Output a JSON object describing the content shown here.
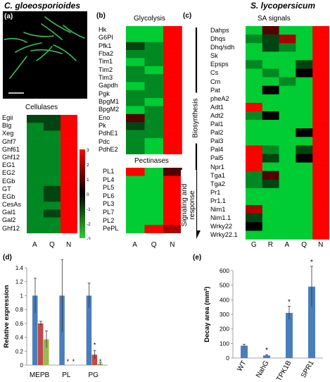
{
  "title_left": "C. gloeosporioides",
  "title_right": "S. lycopersicum",
  "panels": {
    "a": "(a)",
    "b": "(b)",
    "c": "(c)",
    "d": "(d)",
    "e": "(e)"
  },
  "heatmap_a": {
    "header": "Cellulases",
    "rows": [
      "Egii",
      "Blg",
      "Xeg",
      "Ghf7",
      "Ghf61",
      "Ghf12",
      "EG1",
      "EG2",
      "EGb",
      "GT",
      "EGb",
      "CesAs",
      "Gal1",
      "Gal2",
      "Ghf12"
    ],
    "cols": [
      "A",
      "Q",
      "N"
    ],
    "values": [
      [
        -1,
        -1,
        3
      ],
      [
        -2,
        -1,
        3
      ],
      [
        -2,
        -2,
        3
      ],
      [
        -2,
        -2,
        3
      ],
      [
        -2,
        -2,
        3
      ],
      [
        -2,
        -2,
        3
      ],
      [
        -2,
        -2,
        3
      ],
      [
        -2,
        -2,
        3
      ],
      [
        -2,
        -2,
        3
      ],
      [
        -2,
        -1,
        3
      ],
      [
        -2,
        -1,
        3
      ],
      [
        -2,
        -2,
        3
      ],
      [
        -2,
        -1,
        3
      ],
      [
        -2,
        -2,
        3
      ],
      [
        -2,
        -2,
        3
      ]
    ]
  },
  "colorbar": {
    "ticks": [
      "3",
      "2",
      "1",
      "0",
      "-1",
      "-2",
      "-3"
    ],
    "max_color": "#ff0000",
    "min_color": "#33cc33",
    "mid_color": "#000000"
  },
  "heatmap_b1": {
    "header": "Glycolysis",
    "rows": [
      "Hk",
      "G6PI",
      "Pfk1",
      "Fba2",
      "Tim1",
      "Tim2",
      "Tim3",
      "Gapdh",
      "Pgk",
      "BpgM1",
      "BpgM2",
      "Eno",
      "Pk",
      "PdhE1",
      "Pdc",
      "PdhE2"
    ],
    "cols": [
      "A",
      "Q",
      "N"
    ],
    "values": [
      [
        -3,
        -3,
        3
      ],
      [
        -3,
        -3,
        3
      ],
      [
        -1,
        -2,
        3
      ],
      [
        -2,
        -2,
        3
      ],
      [
        -3,
        -2,
        3
      ],
      [
        -2,
        -3,
        3
      ],
      [
        -2,
        -2,
        3
      ],
      [
        -3,
        -2,
        3
      ],
      [
        -2,
        -2,
        3
      ],
      [
        -2,
        -3,
        3
      ],
      [
        -3,
        -2,
        3
      ],
      [
        1,
        -2,
        3
      ],
      [
        -1,
        -2,
        3
      ],
      [
        -2,
        -2,
        3
      ],
      [
        -2,
        -3,
        3
      ],
      [
        -2,
        -3,
        3
      ]
    ]
  },
  "heatmap_b2": {
    "header": "Pectinases",
    "rows": [
      "PL1",
      "PL4",
      "PL5",
      "PL6",
      "PL3",
      "PL7",
      "PL2",
      "PePL"
    ],
    "cols": [
      "A",
      "Q",
      "N"
    ],
    "values": [
      [
        3,
        -3,
        1
      ],
      [
        -3,
        -3,
        3
      ],
      [
        -3,
        -3,
        3
      ],
      [
        -3,
        -3,
        3
      ],
      [
        -3,
        -3,
        3
      ],
      [
        -3,
        -3,
        3
      ],
      [
        -3,
        -3,
        3
      ],
      [
        -3,
        3,
        2
      ]
    ]
  },
  "heatmap_c": {
    "header": "SA signals",
    "side_label_top": "Biosynthesis",
    "side_label_bottom": "Signaling and response",
    "rows": [
      "Dahps",
      "Dhqs",
      "Dhq/sdh",
      "Sk",
      "Epsps",
      "Cs",
      "Cm",
      "Pat",
      "pheA2",
      "Adt1",
      "Adt2",
      "Pal1",
      "Pal2",
      "Pal3",
      "Pal4",
      "Pal5",
      "Npr1",
      "Tga1",
      "Tga2",
      "Pr1",
      "Pr1.1",
      "Nim1",
      "Nim1.1",
      "Wrky22",
      "Wrky22.1"
    ],
    "cols": [
      "G",
      "R",
      "A",
      "Q",
      "N"
    ],
    "values": [
      [
        -3,
        1,
        -3,
        -3,
        3
      ],
      [
        -2,
        -1,
        2,
        -3,
        3
      ],
      [
        -3,
        -1,
        -2,
        -3,
        3
      ],
      [
        -3,
        -3,
        -3,
        -3,
        3
      ],
      [
        -2,
        -3,
        -3,
        -1,
        3
      ],
      [
        -3,
        -2,
        -3,
        0,
        3
      ],
      [
        -3,
        -3,
        -2,
        -3,
        3
      ],
      [
        -3,
        0,
        -3,
        -3,
        3
      ],
      [
        -3,
        -3,
        -3,
        -3,
        3
      ],
      [
        3,
        -3,
        -3,
        -3,
        3
      ],
      [
        -2,
        0,
        -3,
        -3,
        3
      ],
      [
        -3,
        -3,
        -3,
        -3,
        3
      ],
      [
        -3,
        -3,
        -3,
        0,
        3
      ],
      [
        -3,
        -3,
        -3,
        -3,
        3
      ],
      [
        3,
        -2,
        -3,
        -1,
        3
      ],
      [
        3,
        -1,
        -3,
        0,
        3
      ],
      [
        3,
        -3,
        -3,
        -3,
        3
      ],
      [
        -2,
        1,
        -3,
        -3,
        3
      ],
      [
        -2,
        -1,
        -3,
        -3,
        3
      ],
      [
        -3,
        -3,
        -3,
        -3,
        3
      ],
      [
        -3,
        -3,
        -3,
        -3,
        3
      ],
      [
        2,
        -3,
        -3,
        -3,
        3
      ],
      [
        -1,
        -3,
        -3,
        -3,
        3
      ],
      [
        0,
        -3,
        -3,
        -3,
        3
      ],
      [
        -3,
        -3,
        -3,
        -3,
        3
      ]
    ]
  },
  "chart_data": [
    {
      "type": "bar",
      "ylabel": "Relative expression",
      "categories": [
        "MEPB",
        "PL",
        "PG"
      ],
      "ylim": [
        0,
        1.4
      ],
      "yticks": [
        "0",
        "0.2",
        "0.4",
        "0.6",
        "0.8",
        "1",
        "1.2",
        "1.4"
      ],
      "series": [
        {
          "values": [
            1.0,
            1.0,
            1.0
          ],
          "errors": [
            0.25,
            0.52,
            0.18
          ],
          "color": "#4a7ebb"
        },
        {
          "values": [
            0.6,
            0.0,
            0.15
          ],
          "errors": [
            0.03,
            0.0,
            0.06
          ],
          "color": "#be4b48"
        },
        {
          "values": [
            0.37,
            0.0,
            0.02
          ],
          "errors": [
            0.12,
            0.0,
            0.02
          ],
          "color": "#98b954"
        }
      ],
      "annotations": [
        "*",
        "*",
        "*",
        "*"
      ]
    },
    {
      "type": "bar",
      "ylabel": "Decay area (mm²)",
      "categories": [
        "WT",
        "NahG",
        "TPK1B",
        "SPR1"
      ],
      "ylim": [
        0,
        600
      ],
      "yticks": [
        "0",
        "100",
        "200",
        "300",
        "400",
        "500",
        "600"
      ],
      "values": [
        85,
        18,
        310,
        490
      ],
      "errors": [
        10,
        5,
        45,
        140
      ],
      "stars": [
        "",
        "*",
        "*",
        "*"
      ],
      "color": "#4a7ebb"
    }
  ]
}
